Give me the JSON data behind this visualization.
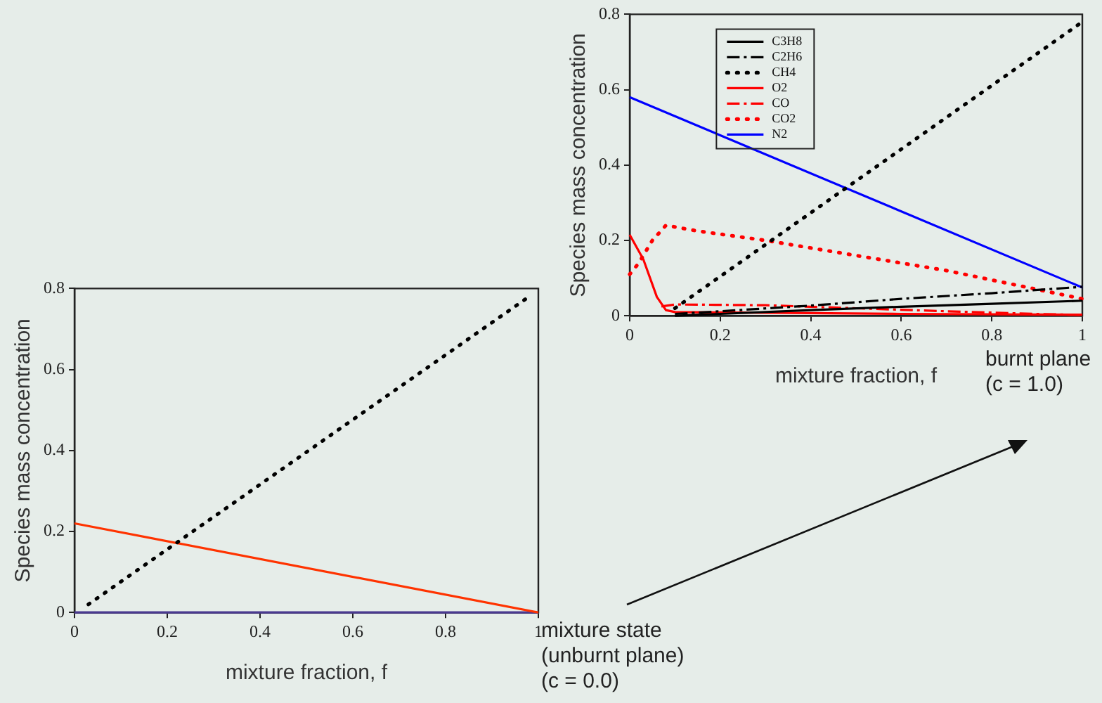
{
  "chart_data": [
    {
      "type": "line",
      "xlabel": "mixture fraction, f",
      "ylabel": "Species mass concentration",
      "xlim": [
        0,
        1
      ],
      "xticks": [
        0,
        0.2,
        0.4,
        0.6,
        0.8,
        1
      ],
      "ylim": [
        0,
        0.8
      ],
      "yticks": [
        0,
        0.2,
        0.4,
        0.6,
        0.8
      ],
      "grid": false,
      "legend": false,
      "marker": "none",
      "series": [
        {
          "color": "#000000",
          "line_style": "dotted",
          "x": [
            0.03,
            0.98
          ],
          "values": [
            0.02,
            0.78
          ]
        },
        {
          "color": "#ff3300",
          "line_style": "solid",
          "x": [
            0,
            1
          ],
          "values": [
            0.22,
            0
          ]
        },
        {
          "color": "#4a3a90",
          "line_style": "solid",
          "x": [
            0,
            1
          ],
          "values": [
            0,
            0
          ]
        }
      ],
      "annotations": [
        {
          "text": "mixture state\n(unburnt plane)\n(c = 0.0)",
          "x": 1,
          "y": 0
        }
      ]
    },
    {
      "type": "line",
      "xlabel": "mixture fraction, f",
      "ylabel": "Species mass concentration",
      "xlim": [
        0,
        1
      ],
      "xticks": [
        0,
        0.2,
        0.4,
        0.6,
        0.8,
        1
      ],
      "ylim": [
        0,
        0.8
      ],
      "yticks": [
        0,
        0.2,
        0.4,
        0.6,
        0.8
      ],
      "grid": false,
      "legend": "top left",
      "marker": "none",
      "series": [
        {
          "name": "C3H8",
          "color": "#000000",
          "line_style": "solid",
          "x": [
            0.1,
            0.2,
            0.4,
            0.6,
            0.8,
            1
          ],
          "values": [
            0,
            0.005,
            0.015,
            0.024,
            0.032,
            0.04
          ]
        },
        {
          "name": "C2H6",
          "color": "#000000",
          "line_style": "dashed",
          "x": [
            0.1,
            0.2,
            0.4,
            0.6,
            0.8,
            1
          ],
          "values": [
            0.005,
            0.012,
            0.027,
            0.045,
            0.06,
            0.077
          ]
        },
        {
          "name": "CH4",
          "color": "#000000",
          "line_style": "dotted",
          "x": [
            0.1,
            1
          ],
          "values": [
            0.02,
            0.78
          ]
        },
        {
          "name": "O2",
          "color": "#ff0000",
          "line_style": "solid",
          "x": [
            0,
            0.03,
            0.06,
            0.08,
            0.1,
            0.3,
            0.6,
            1
          ],
          "values": [
            0.215,
            0.15,
            0.05,
            0.015,
            0.01,
            0.008,
            0.005,
            0.003
          ]
        },
        {
          "name": "CO",
          "color": "#ff0000",
          "line_style": "dashed",
          "x": [
            0.07,
            0.1,
            0.3,
            0.5,
            0.7,
            0.9,
            1
          ],
          "values": [
            0.025,
            0.03,
            0.028,
            0.02,
            0.012,
            0.005,
            0.002
          ]
        },
        {
          "name": "CO2",
          "color": "#ff0000",
          "line_style": "dotted",
          "x": [
            0,
            0.02,
            0.05,
            0.08,
            0.15,
            0.3,
            0.5,
            0.7,
            0.9,
            1
          ],
          "values": [
            0.11,
            0.14,
            0.2,
            0.24,
            0.225,
            0.2,
            0.16,
            0.12,
            0.07,
            0.045
          ]
        },
        {
          "name": "N2",
          "color": "#0000ff",
          "line_style": "solid",
          "x": [
            0,
            1
          ],
          "values": [
            0.58,
            0.075
          ]
        }
      ],
      "annotations": [
        {
          "text": "burnt plane\n(c = 1.0)",
          "x": 1,
          "y": 0
        }
      ]
    }
  ]
}
